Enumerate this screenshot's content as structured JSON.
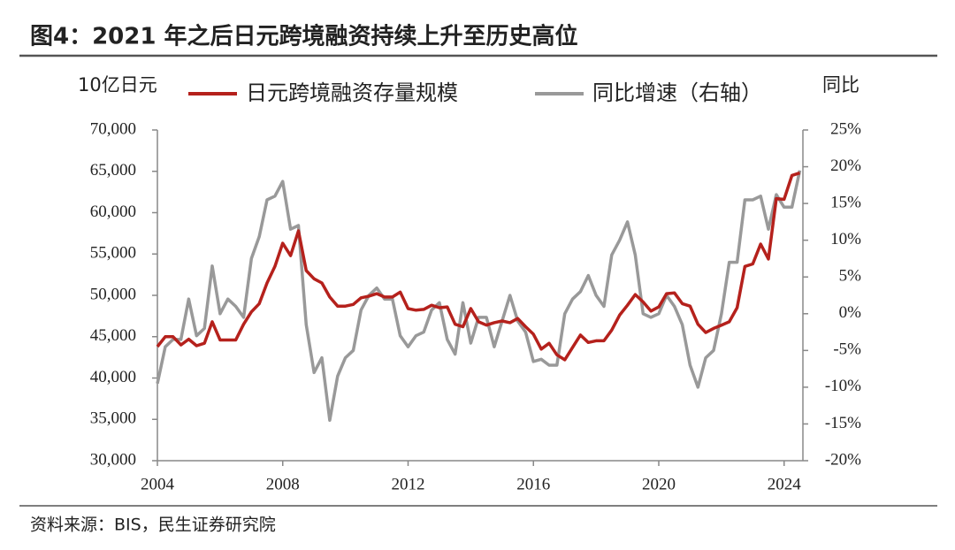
{
  "chart_data": {
    "type": "line",
    "title": "图4：2021 年之后日元跨境融资持续上升至历史高位",
    "y_label": "10亿日元",
    "y2_label": "同比",
    "source": "资料来源：BIS，民生证券研究院",
    "x": [
      2004,
      2004.25,
      2004.5,
      2004.75,
      2005,
      2005.25,
      2005.5,
      2005.75,
      2006,
      2006.25,
      2006.5,
      2006.75,
      2007,
      2007.25,
      2007.5,
      2007.75,
      2008,
      2008.25,
      2008.5,
      2008.75,
      2009,
      2009.25,
      2009.5,
      2009.75,
      2010,
      2010.25,
      2010.5,
      2010.75,
      2011,
      2011.25,
      2011.5,
      2011.75,
      2012,
      2012.25,
      2012.5,
      2012.75,
      2013,
      2013.25,
      2013.5,
      2013.75,
      2014,
      2014.25,
      2014.5,
      2014.75,
      2015,
      2015.25,
      2015.5,
      2015.75,
      2016,
      2016.25,
      2016.5,
      2016.75,
      2017,
      2017.25,
      2017.5,
      2017.75,
      2018,
      2018.25,
      2018.5,
      2018.75,
      2019,
      2019.25,
      2019.5,
      2019.75,
      2020,
      2020.25,
      2020.5,
      2020.75,
      2021,
      2021.25,
      2021.5,
      2021.75,
      2022,
      2022.25,
      2022.5,
      2022.75,
      2023,
      2023.25,
      2023.5,
      2023.75,
      2024,
      2024.25,
      2024.5
    ],
    "series": [
      {
        "name": "日元跨境融资存量规模",
        "color": "#b5211c",
        "values": [
          43800,
          45000,
          45000,
          44000,
          44700,
          43900,
          44200,
          46800,
          44600,
          44600,
          44600,
          46500,
          48000,
          49000,
          51500,
          53500,
          56300,
          54800,
          57800,
          53000,
          52000,
          51500,
          49800,
          48700,
          48700,
          48900,
          49700,
          49900,
          50200,
          49800,
          49800,
          50400,
          48400,
          48200,
          48300,
          48800,
          48500,
          48600,
          46500,
          46200,
          48400,
          46800,
          46400,
          46700,
          46900,
          46700,
          47200,
          46200,
          45300,
          43500,
          44200,
          42800,
          42200,
          43700,
          45200,
          44300,
          44500,
          44500,
          45800,
          47600,
          48800,
          50100,
          49200,
          48100,
          48600,
          50200,
          50300,
          49000,
          48700,
          46500,
          45500,
          46000,
          46400,
          46800,
          48500,
          53500,
          53800,
          56200,
          54400,
          61700,
          61600,
          64500,
          64800
        ]
      },
      {
        "name": "同比增速（右轴）",
        "color": "#999999",
        "axis": "y2",
        "values": [
          -9.5,
          -4.5,
          -3.5,
          -3.5,
          2,
          -3,
          -2,
          6.5,
          0,
          2,
          1,
          -0.5,
          7.5,
          10.5,
          15.5,
          16,
          18,
          11.5,
          12,
          -1.5,
          -8,
          -6,
          -14.5,
          -8.5,
          -6,
          -5,
          0.5,
          2.5,
          3.5,
          2,
          2,
          -3,
          -4.5,
          -3,
          -2.5,
          0.5,
          1.5,
          -3.5,
          -5.5,
          1.5,
          -4,
          -0.5,
          -0.5,
          -4.5,
          -1,
          2.5,
          -1,
          -2.5,
          -6.5,
          -6.2,
          -7,
          -7,
          0,
          2,
          3,
          5.2,
          2.5,
          1,
          8,
          10,
          12.5,
          8,
          0,
          -0.5,
          0,
          2.5,
          1,
          -1.5,
          -7,
          -10,
          -6,
          -5,
          0,
          7,
          7,
          15.5,
          15.5,
          16,
          11.5,
          16.2,
          14.5,
          14.5,
          19.5
        ]
      }
    ],
    "xlim": [
      2004,
      2024.6
    ],
    "xticks": [
      2004,
      2008,
      2012,
      2016,
      2020,
      2024
    ],
    "ylim": [
      30000,
      70000
    ],
    "yticks": [
      {
        "value": 30000,
        "label": "30,000"
      },
      {
        "value": 35000,
        "label": "35,000"
      },
      {
        "value": 40000,
        "label": "40,000"
      },
      {
        "value": 45000,
        "label": "45,000"
      },
      {
        "value": 50000,
        "label": "50,000"
      },
      {
        "value": 55000,
        "label": "55,000"
      },
      {
        "value": 60000,
        "label": "60,000"
      },
      {
        "value": 65000,
        "label": "65,000"
      },
      {
        "value": 70000,
        "label": "70,000"
      }
    ],
    "y2lim": [
      -20,
      25
    ],
    "y2ticks": [
      {
        "value": -20,
        "label": "-20%"
      },
      {
        "value": -15,
        "label": "-15%"
      },
      {
        "value": -10,
        "label": "-10%"
      },
      {
        "value": -5,
        "label": "-5%"
      },
      {
        "value": 0,
        "label": "0%"
      },
      {
        "value": 5,
        "label": "5%"
      },
      {
        "value": 10,
        "label": "10%"
      },
      {
        "value": 15,
        "label": "15%"
      },
      {
        "value": 20,
        "label": "20%"
      },
      {
        "value": 25,
        "label": "25%"
      }
    ],
    "grid": false
  }
}
